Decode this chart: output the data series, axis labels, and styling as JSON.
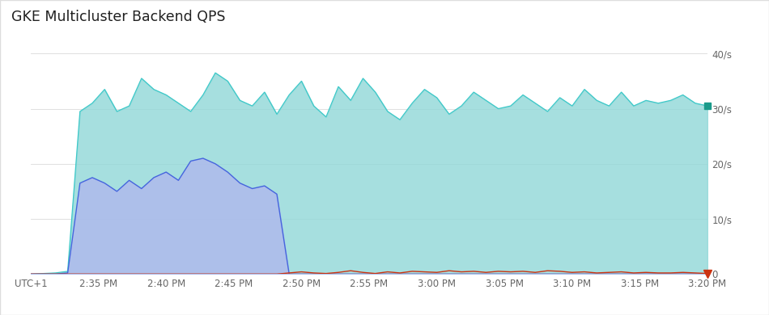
{
  "title": "GKE Multicluster Backend QPS",
  "background_color": "#f8f9fa",
  "plot_bg_color": "#ffffff",
  "panel_bg": "#ffffff",
  "ylim": [
    0,
    40
  ],
  "yticks": [
    0,
    10,
    20,
    30,
    40
  ],
  "ytick_labels": [
    "0",
    "10/s",
    "20/s",
    "30/s",
    "40/s"
  ],
  "xlabel_ticks": [
    "UTC+1",
    "2:35 PM",
    "2:40 PM",
    "2:45 PM",
    "2:50 PM",
    "2:55 PM",
    "3:00 PM",
    "3:05 PM",
    "3:10 PM",
    "3:15 PM",
    "3:20 PM"
  ],
  "teal_fill_color": "#90d8d8",
  "teal_line_color": "#3ec9c9",
  "blue_fill_color": "#b0b8ee",
  "blue_line_color": "#4466dd",
  "red_line_color": "#cc3311",
  "end_marker_teal": "#1a9a8a",
  "end_marker_red": "#cc3311",
  "teal_series": [
    0.0,
    0.1,
    0.2,
    0.5,
    29.5,
    31.0,
    33.5,
    29.5,
    30.5,
    35.5,
    33.5,
    32.5,
    31.0,
    29.5,
    32.5,
    36.5,
    35.0,
    31.5,
    30.5,
    33.0,
    29.0,
    32.5,
    35.0,
    30.5,
    28.5,
    34.0,
    31.5,
    35.5,
    33.0,
    29.5,
    28.0,
    31.0,
    33.5,
    32.0,
    29.0,
    30.5,
    33.0,
    31.5,
    30.0,
    30.5,
    32.5,
    31.0,
    29.5,
    32.0,
    30.5,
    33.5,
    31.5,
    30.5,
    33.0,
    30.5,
    31.5,
    31.0,
    31.5,
    32.5,
    31.0,
    30.5
  ],
  "blue_series": [
    0.0,
    0.0,
    0.0,
    0.2,
    16.5,
    17.5,
    16.5,
    15.0,
    17.0,
    15.5,
    17.5,
    18.5,
    17.0,
    20.5,
    21.0,
    20.0,
    18.5,
    16.5,
    15.5,
    16.0,
    14.5,
    0.0,
    0.0,
    0.0,
    0.0,
    0.0,
    0.0,
    0.0,
    0.0,
    0.0,
    0.0,
    0.0,
    0.0,
    0.0,
    0.0,
    0.0,
    0.0,
    0.0,
    0.0,
    0.0,
    0.0,
    0.0,
    0.0,
    0.0,
    0.0,
    0.0,
    0.0,
    0.0,
    0.0,
    0.0,
    0.0,
    0.0,
    0.0,
    0.0,
    0.0,
    0.0
  ],
  "red_series": [
    0.0,
    0.0,
    0.0,
    0.0,
    0.0,
    0.0,
    0.0,
    0.0,
    0.0,
    0.0,
    0.0,
    0.0,
    0.0,
    0.0,
    0.0,
    0.0,
    0.0,
    0.0,
    0.0,
    0.0,
    0.0,
    0.2,
    0.4,
    0.2,
    0.1,
    0.3,
    0.6,
    0.3,
    0.1,
    0.4,
    0.2,
    0.5,
    0.4,
    0.3,
    0.6,
    0.4,
    0.5,
    0.3,
    0.5,
    0.4,
    0.5,
    0.3,
    0.6,
    0.5,
    0.3,
    0.4,
    0.2,
    0.3,
    0.4,
    0.2,
    0.3,
    0.2,
    0.2,
    0.3,
    0.2,
    0.1
  ]
}
